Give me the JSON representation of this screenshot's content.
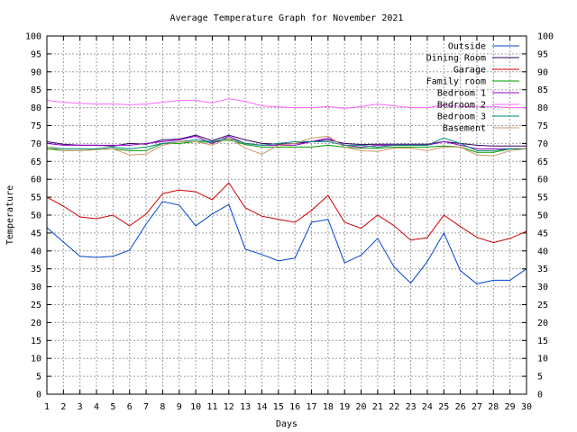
{
  "chart_data": {
    "type": "line",
    "title": "Average Temperature Graph for November 2021",
    "xlabel": "Days",
    "ylabel": "Temperature",
    "x": [
      1,
      2,
      3,
      4,
      5,
      6,
      7,
      8,
      9,
      10,
      11,
      12,
      13,
      14,
      15,
      16,
      17,
      18,
      19,
      20,
      21,
      22,
      23,
      24,
      25,
      26,
      27,
      28,
      29,
      30
    ],
    "xlim": [
      1,
      30
    ],
    "ylim": [
      0,
      100
    ],
    "yticks": [
      0,
      5,
      10,
      15,
      20,
      25,
      30,
      35,
      40,
      45,
      50,
      55,
      60,
      65,
      70,
      75,
      80,
      85,
      90,
      95,
      100
    ],
    "right_axis": true,
    "grid": true,
    "legend_position": "top-right",
    "series": [
      {
        "name": "Outside",
        "color": "#0044cc",
        "values": [
          46.5,
          42.5,
          38.5,
          38.2,
          38.5,
          40.2,
          47.5,
          53.8,
          52.8,
          47.0,
          50.3,
          53.0,
          40.5,
          39.0,
          37.2,
          38.0,
          48.0,
          48.8,
          36.7,
          38.8,
          43.5,
          35.5,
          31.0,
          37.0,
          45.0,
          34.5,
          30.8,
          31.8,
          31.8,
          35.0
        ]
      },
      {
        "name": "Dining Room",
        "color": "#330066",
        "values": [
          70.5,
          69.8,
          69.5,
          69.5,
          69.3,
          70.0,
          69.8,
          71.0,
          71.2,
          72.3,
          70.8,
          72.3,
          71.0,
          70.0,
          69.8,
          70.0,
          70.5,
          71.0,
          70.0,
          69.7,
          69.8,
          69.8,
          69.8,
          69.8,
          70.5,
          70.0,
          69.5,
          69.3,
          69.3,
          69.3
        ]
      },
      {
        "name": "Garage",
        "color": "#cc0000",
        "values": [
          55.0,
          52.5,
          49.5,
          49.0,
          50.0,
          47.0,
          50.3,
          56.0,
          57.0,
          56.5,
          54.3,
          59.0,
          52.0,
          49.7,
          48.8,
          48.0,
          51.3,
          55.5,
          48.0,
          46.3,
          50.0,
          47.0,
          43.0,
          43.7,
          50.0,
          46.8,
          43.8,
          42.3,
          43.5,
          45.5
        ]
      },
      {
        "name": "Family room",
        "color": "#009900",
        "values": [
          68.5,
          68.0,
          68.0,
          68.3,
          68.5,
          68.0,
          68.0,
          70.0,
          70.0,
          70.5,
          70.3,
          71.0,
          69.7,
          69.0,
          69.0,
          69.0,
          69.0,
          69.5,
          69.0,
          68.7,
          68.7,
          69.0,
          69.0,
          69.0,
          69.3,
          69.0,
          67.5,
          67.5,
          68.5,
          68.5
        ]
      },
      {
        "name": "Bedroom 1",
        "color": "#9900cc",
        "values": [
          70.0,
          69.5,
          69.5,
          69.5,
          69.5,
          69.5,
          70.0,
          70.5,
          71.0,
          72.0,
          70.0,
          72.0,
          70.0,
          69.5,
          69.5,
          69.5,
          70.5,
          71.5,
          69.5,
          69.0,
          69.5,
          69.5,
          69.5,
          69.5,
          70.5,
          69.5,
          68.5,
          68.5,
          68.5,
          68.5
        ]
      },
      {
        "name": "Bedroom 2",
        "color": "#ff66ff",
        "values": [
          82.0,
          81.5,
          81.2,
          81.0,
          81.0,
          80.8,
          81.0,
          81.5,
          82.0,
          82.0,
          81.3,
          82.5,
          81.7,
          80.5,
          80.2,
          80.0,
          80.0,
          80.3,
          79.8,
          80.3,
          81.0,
          80.5,
          80.0,
          80.0,
          80.7,
          80.3,
          80.3,
          80.3,
          80.0,
          80.0
        ]
      },
      {
        "name": "Bedroom 3",
        "color": "#008877",
        "values": [
          69.0,
          68.5,
          68.5,
          68.5,
          69.0,
          68.5,
          69.0,
          70.0,
          70.5,
          71.0,
          70.5,
          71.5,
          70.0,
          69.5,
          70.0,
          70.5,
          70.5,
          70.5,
          69.5,
          69.5,
          69.0,
          69.5,
          69.5,
          69.5,
          71.5,
          70.0,
          68.0,
          68.0,
          68.5,
          68.5
        ]
      },
      {
        "name": "Basement",
        "color": "#cc9966",
        "values": [
          69.0,
          68.0,
          68.0,
          68.3,
          68.5,
          66.8,
          67.0,
          69.5,
          70.5,
          70.5,
          69.5,
          71.5,
          68.7,
          67.0,
          69.5,
          70.0,
          71.5,
          72.0,
          69.0,
          68.0,
          67.8,
          68.7,
          68.7,
          68.0,
          69.0,
          69.0,
          66.8,
          66.5,
          68.0,
          68.5
        ]
      }
    ]
  }
}
